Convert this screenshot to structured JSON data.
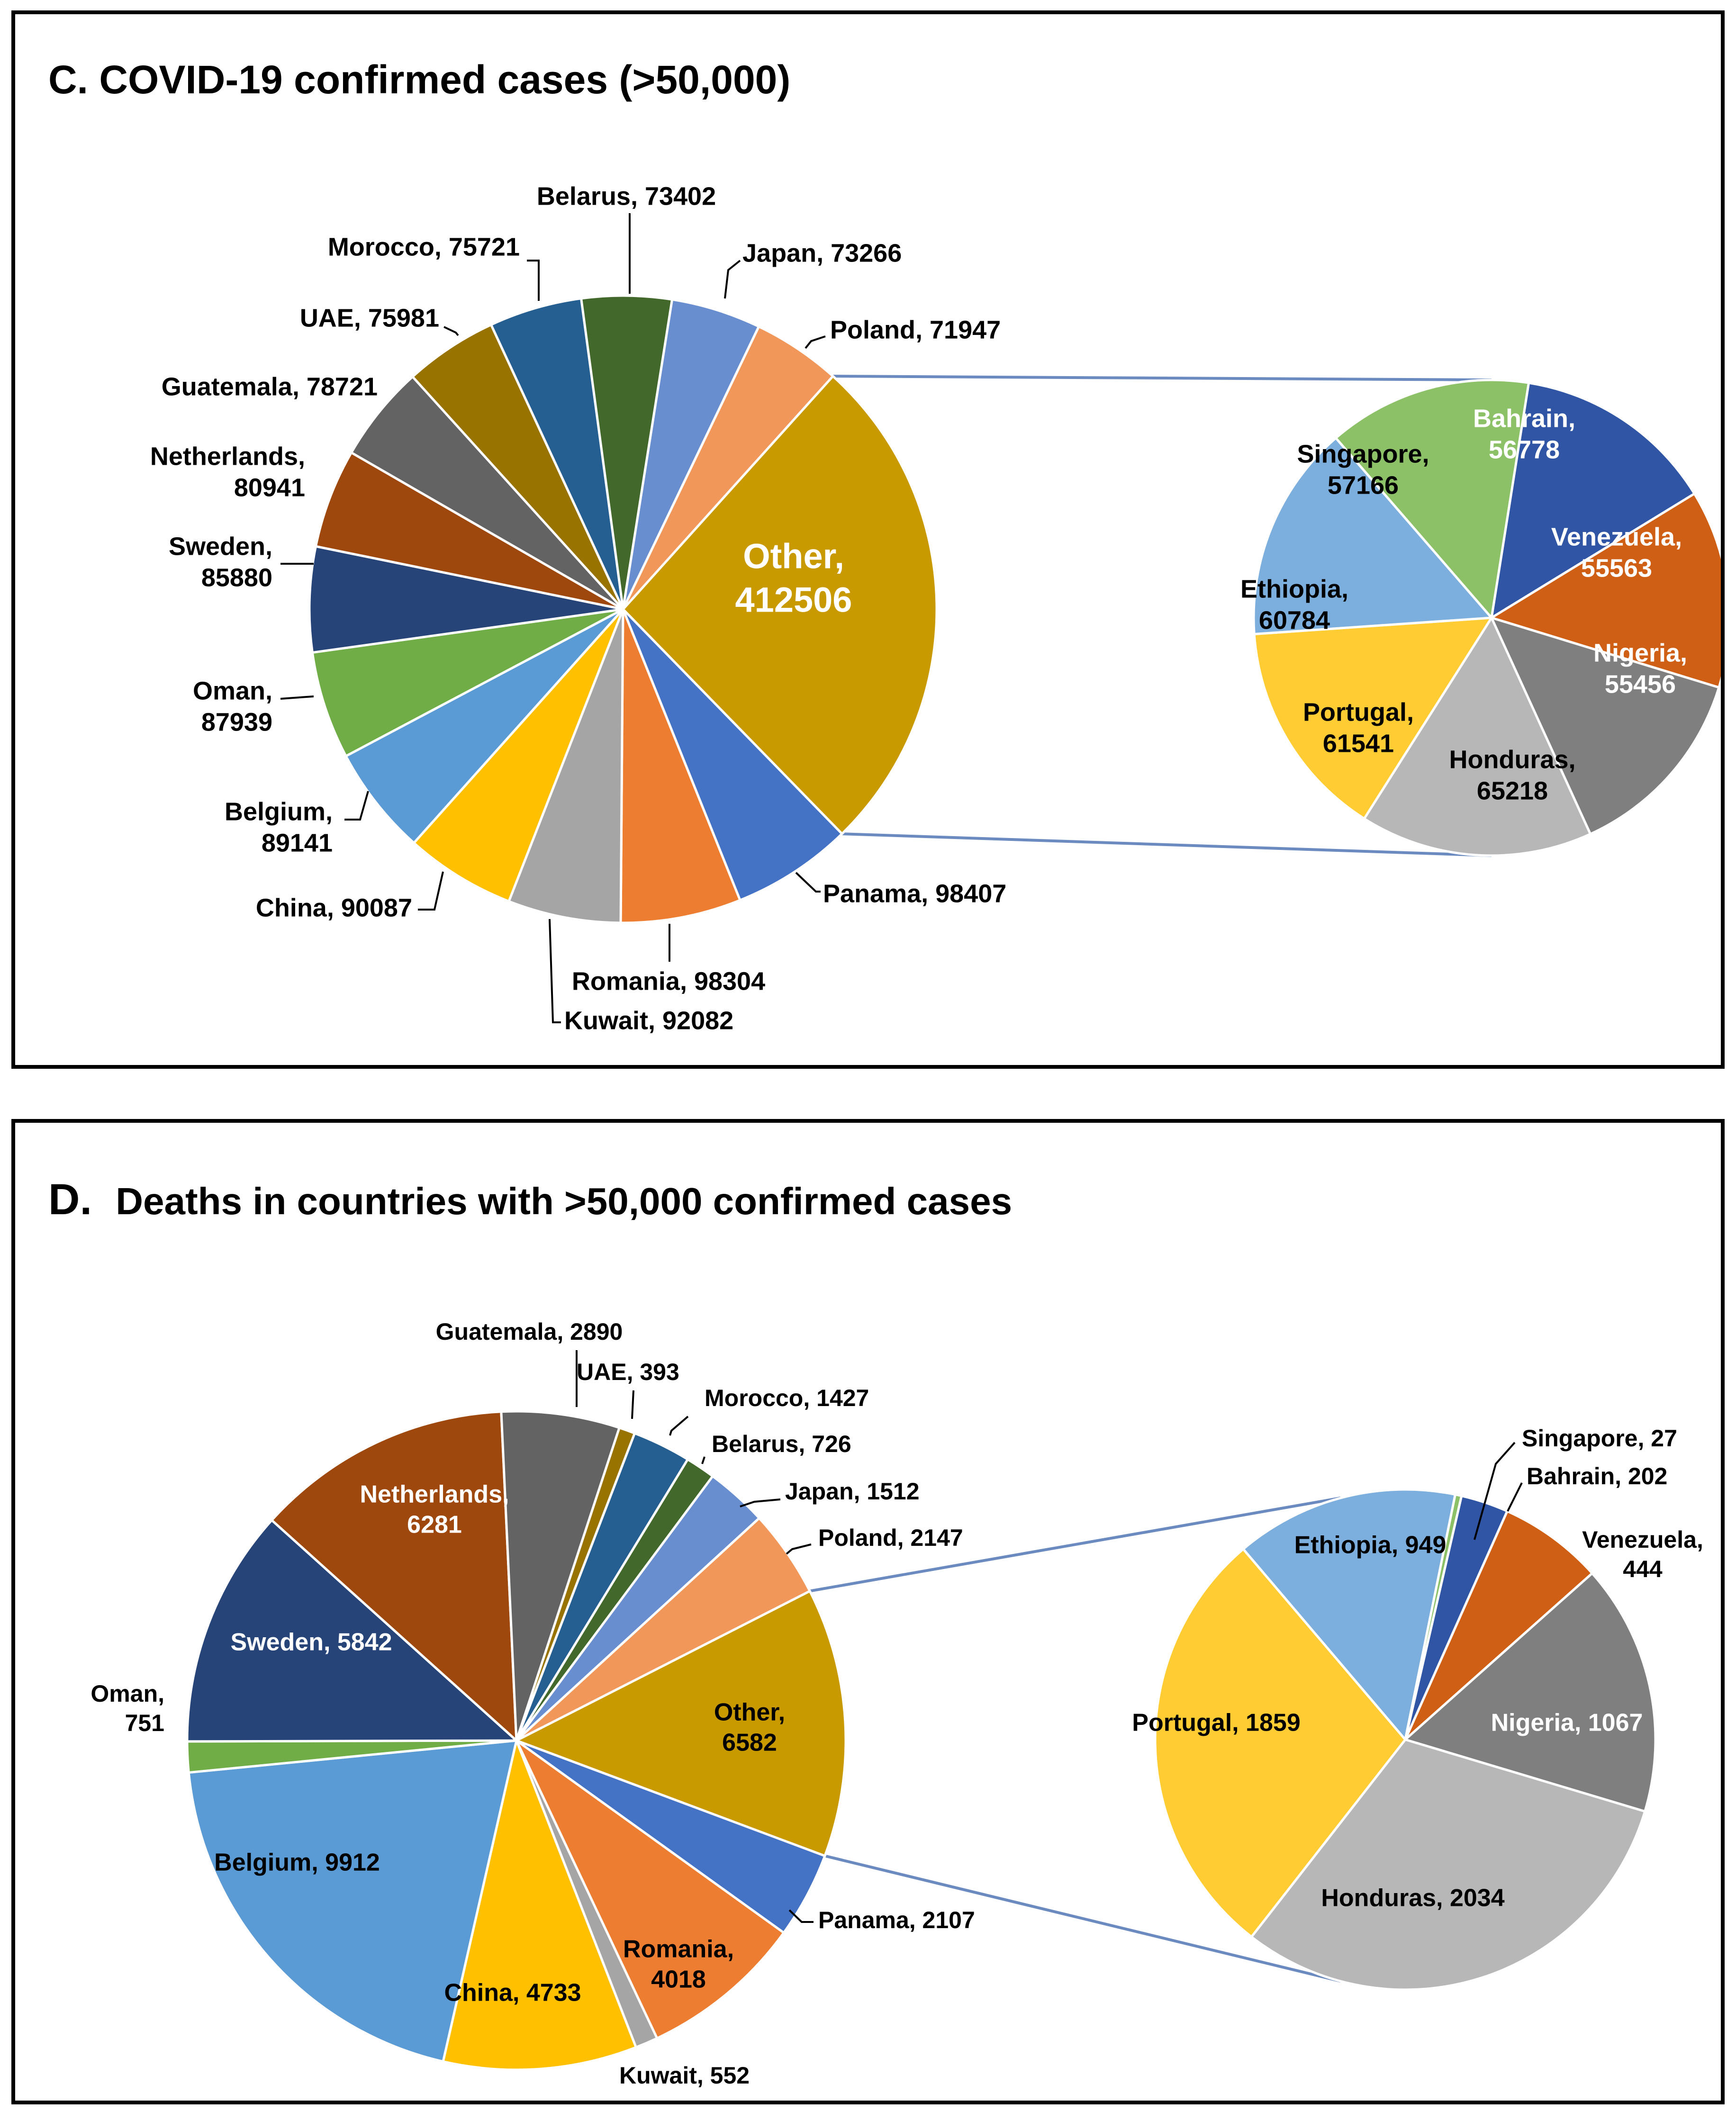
{
  "chart_data": [
    {
      "type": "pie",
      "subtype": "pie-of-pie",
      "title": "C. COVID-19 confirmed cases (>50,000)",
      "main": [
        {
          "label": "Other",
          "value": 412506,
          "color": "#C99A00",
          "text_color": "#ffffff"
        },
        {
          "label": "Panama",
          "value": 98407,
          "color": "#4472C4",
          "text_color": "#000000"
        },
        {
          "label": "Romania",
          "value": 98304,
          "color": "#ED7D31",
          "text_color": "#000000"
        },
        {
          "label": "Kuwait",
          "value": 92082,
          "color": "#A5A5A5",
          "text_color": "#000000"
        },
        {
          "label": "China",
          "value": 90087,
          "color": "#FFC000",
          "text_color": "#000000"
        },
        {
          "label": "Belgium",
          "value": 89141,
          "color": "#5B9BD5",
          "text_color": "#000000"
        },
        {
          "label": "Oman",
          "value": 87939,
          "color": "#70AD47",
          "text_color": "#000000"
        },
        {
          "label": "Sweden",
          "value": 85880,
          "color": "#264478",
          "text_color": "#000000"
        },
        {
          "label": "Netherlands",
          "value": 80941,
          "color": "#9E480E",
          "text_color": "#000000"
        },
        {
          "label": "Guatemala",
          "value": 78721,
          "color": "#636363",
          "text_color": "#000000"
        },
        {
          "label": "UAE",
          "value": 75981,
          "color": "#997300",
          "text_color": "#000000"
        },
        {
          "label": "Morocco",
          "value": 75721,
          "color": "#255E91",
          "text_color": "#000000"
        },
        {
          "label": "Belarus",
          "value": 73402,
          "color": "#43682B",
          "text_color": "#000000"
        },
        {
          "label": "Japan",
          "value": 73266,
          "color": "#698ED0",
          "text_color": "#000000"
        },
        {
          "label": "Poland",
          "value": 71947,
          "color": "#F1975A",
          "text_color": "#000000"
        }
      ],
      "secondary": [
        {
          "label": "Bahrain",
          "value": 56778,
          "color": "#2F55A4",
          "text_color": "#ffffff"
        },
        {
          "label": "Venezuela",
          "value": 55563,
          "color": "#D05F16",
          "text_color": "#ffffff"
        },
        {
          "label": "Nigeria",
          "value": 55456,
          "color": "#7F7F7F",
          "text_color": "#ffffff"
        },
        {
          "label": "Honduras",
          "value": 65218,
          "color": "#B7B7B7",
          "text_color": "#000000"
        },
        {
          "label": "Portugal",
          "value": 61541,
          "color": "#FFCD33",
          "text_color": "#000000"
        },
        {
          "label": "Ethiopia",
          "value": 60784,
          "color": "#7CAFDD",
          "text_color": "#000000"
        },
        {
          "label": "Singapore",
          "value": 57166,
          "color": "#8CC168",
          "text_color": "#000000"
        }
      ],
      "connector_color": "#6A8AC0"
    },
    {
      "type": "pie",
      "subtype": "pie-of-pie",
      "title": "Deaths in countries with >50,000 confirmed cases",
      "title_prefix": "D.",
      "main": [
        {
          "label": "Other",
          "value": 6582,
          "color": "#C99A00",
          "text_color": "#000000"
        },
        {
          "label": "Panama",
          "value": 2107,
          "color": "#4472C4",
          "text_color": "#000000"
        },
        {
          "label": "Romania",
          "value": 4018,
          "color": "#ED7D31",
          "text_color": "#000000"
        },
        {
          "label": "Kuwait",
          "value": 552,
          "color": "#A5A5A5",
          "text_color": "#000000"
        },
        {
          "label": "China",
          "value": 4733,
          "color": "#FFC000",
          "text_color": "#000000"
        },
        {
          "label": "Belgium",
          "value": 9912,
          "color": "#5B9BD5",
          "text_color": "#000000"
        },
        {
          "label": "Oman",
          "value": 751,
          "color": "#70AD47",
          "text_color": "#000000"
        },
        {
          "label": "Sweden",
          "value": 5842,
          "color": "#264478",
          "text_color": "#ffffff"
        },
        {
          "label": "Netherlands",
          "value": 6281,
          "color": "#9E480E",
          "text_color": "#ffffff"
        },
        {
          "label": "Guatemala",
          "value": 2890,
          "color": "#636363",
          "text_color": "#000000"
        },
        {
          "label": "UAE",
          "value": 393,
          "color": "#997300",
          "text_color": "#000000"
        },
        {
          "label": "Morocco",
          "value": 1427,
          "color": "#255E91",
          "text_color": "#000000"
        },
        {
          "label": "Belarus",
          "value": 726,
          "color": "#43682B",
          "text_color": "#000000"
        },
        {
          "label": "Japan",
          "value": 1512,
          "color": "#698ED0",
          "text_color": "#000000"
        },
        {
          "label": "Poland",
          "value": 2147,
          "color": "#F1975A",
          "text_color": "#000000"
        }
      ],
      "secondary": [
        {
          "label": "Bahrain",
          "value": 202,
          "color": "#2F55A4",
          "text_color": "#000000"
        },
        {
          "label": "Venezuela",
          "value": 444,
          "color": "#D05F16",
          "text_color": "#000000"
        },
        {
          "label": "Nigeria",
          "value": 1067,
          "color": "#7F7F7F",
          "text_color": "#ffffff"
        },
        {
          "label": "Honduras",
          "value": 2034,
          "color": "#B7B7B7",
          "text_color": "#000000"
        },
        {
          "label": "Portugal",
          "value": 1859,
          "color": "#FFCD33",
          "text_color": "#000000"
        },
        {
          "label": "Ethiopia",
          "value": 949,
          "color": "#7CAFDD",
          "text_color": "#000000"
        },
        {
          "label": "Singapore",
          "value": 27,
          "color": "#8CC168",
          "text_color": "#000000"
        }
      ],
      "connector_color": "#6A8AC0"
    }
  ]
}
